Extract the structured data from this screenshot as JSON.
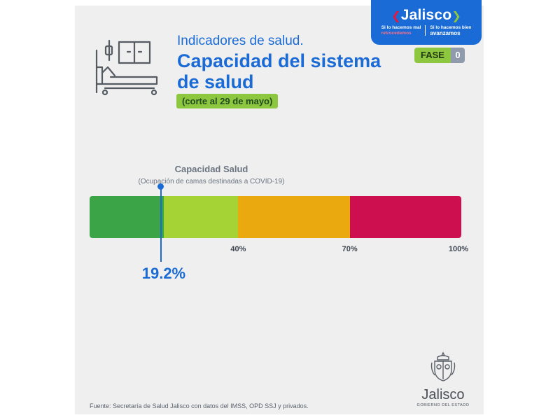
{
  "brand": {
    "name": "Jalisco",
    "tagline_left_1": "Si lo hacemos mal",
    "tagline_left_2": "retrocedemos",
    "tagline_right_1": "Si lo hacemos bien",
    "tagline_right_2": "avanzamos"
  },
  "phase": {
    "label": "FASE",
    "number": "0"
  },
  "header": {
    "pretitle": "Indicadores de salud.",
    "title": "Capacidad del sistema de salud",
    "date_pill": "(corte al 29 de mayo)"
  },
  "chart_data": {
    "type": "bar",
    "title": "Capacidad Salud",
    "subtitle": "(Ocupación de camas destinadas a COVID-19)",
    "range": [
      0,
      100
    ],
    "bands": [
      {
        "from": 0,
        "to": 20,
        "color": "#3aa447"
      },
      {
        "from": 20,
        "to": 40,
        "color": "#a5d234"
      },
      {
        "from": 40,
        "to": 70,
        "color": "#e9a90f"
      },
      {
        "from": 70,
        "to": 100,
        "color": "#cd0e4f"
      }
    ],
    "ticks": [
      {
        "value": 40,
        "label": "40%"
      },
      {
        "value": 70,
        "label": "70%"
      },
      {
        "value": 100,
        "label": "100%"
      }
    ],
    "value": 19.2,
    "value_label": "19.2%"
  },
  "footer": {
    "source": "Fuente: Secretaría de Salud Jalisco con datos del IMSS, OPD SSJ y privados.",
    "gov_name": "Jalisco",
    "gov_sub": "GOBIERNO DEL ESTADO"
  }
}
